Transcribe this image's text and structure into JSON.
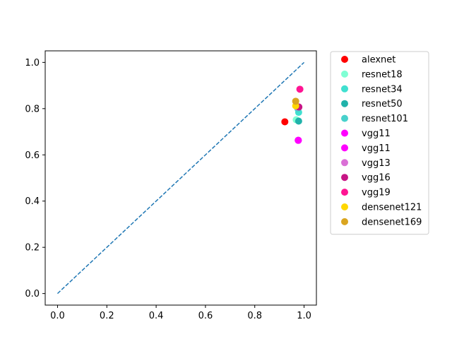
{
  "chart_data": {
    "type": "scatter",
    "title": "",
    "xlabel": "",
    "ylabel": "",
    "xlim": [
      -0.05,
      1.05
    ],
    "ylim": [
      -0.05,
      1.05
    ],
    "xticks": [
      0.0,
      0.2,
      0.4,
      0.6,
      0.8,
      1.0
    ],
    "yticks": [
      0.0,
      0.2,
      0.4,
      0.6,
      0.8,
      1.0
    ],
    "xtick_labels": [
      "0.0",
      "0.2",
      "0.4",
      "0.6",
      "0.8",
      "1.0"
    ],
    "ytick_labels": [
      "0.0",
      "0.2",
      "0.4",
      "0.6",
      "0.8",
      "1.0"
    ],
    "grid": false,
    "legend_position": "outside-right-top",
    "reference_line": {
      "x": [
        0.0,
        1.0
      ],
      "y": [
        0.0,
        1.0
      ],
      "style": "dashed",
      "color": "#1f77b4"
    },
    "series": [
      {
        "name": "alexnet",
        "color": "#ff0000",
        "x": [
          0.922
        ],
        "y": [
          0.743
        ]
      },
      {
        "name": "resnet18",
        "color": "#7fffd4",
        "x": [
          0.968
        ],
        "y": [
          0.752
        ]
      },
      {
        "name": "resnet34",
        "color": "#40e0d0",
        "x": [
          0.978
        ],
        "y": [
          0.784
        ]
      },
      {
        "name": "resnet50",
        "color": "#20b2aa",
        "x": [
          0.978
        ],
        "y": [
          0.746
        ]
      },
      {
        "name": "resnet101",
        "color": "#48d1cc",
        "x": [
          0.975
        ],
        "y": [
          0.8
        ]
      },
      {
        "name": "vgg11",
        "color": "#ff00ff",
        "x": [
          0.976
        ],
        "y": [
          0.663
        ]
      },
      {
        "name": "vgg11",
        "color": "#ff00ff",
        "x": [
          0.977
        ],
        "y": [
          0.663
        ]
      },
      {
        "name": "vgg13",
        "color": "#da70d6",
        "x": [
          0.972
        ],
        "y": [
          0.808
        ]
      },
      {
        "name": "vgg16",
        "color": "#c71585",
        "x": [
          0.979
        ],
        "y": [
          0.807
        ]
      },
      {
        "name": "vgg19",
        "color": "#ff1493",
        "x": [
          0.983
        ],
        "y": [
          0.884
        ]
      },
      {
        "name": "densenet121",
        "color": "#ffd700",
        "x": [
          0.966
        ],
        "y": [
          0.812
        ]
      },
      {
        "name": "densenet169",
        "color": "#daa520",
        "x": [
          0.966
        ],
        "y": [
          0.832
        ]
      }
    ]
  }
}
